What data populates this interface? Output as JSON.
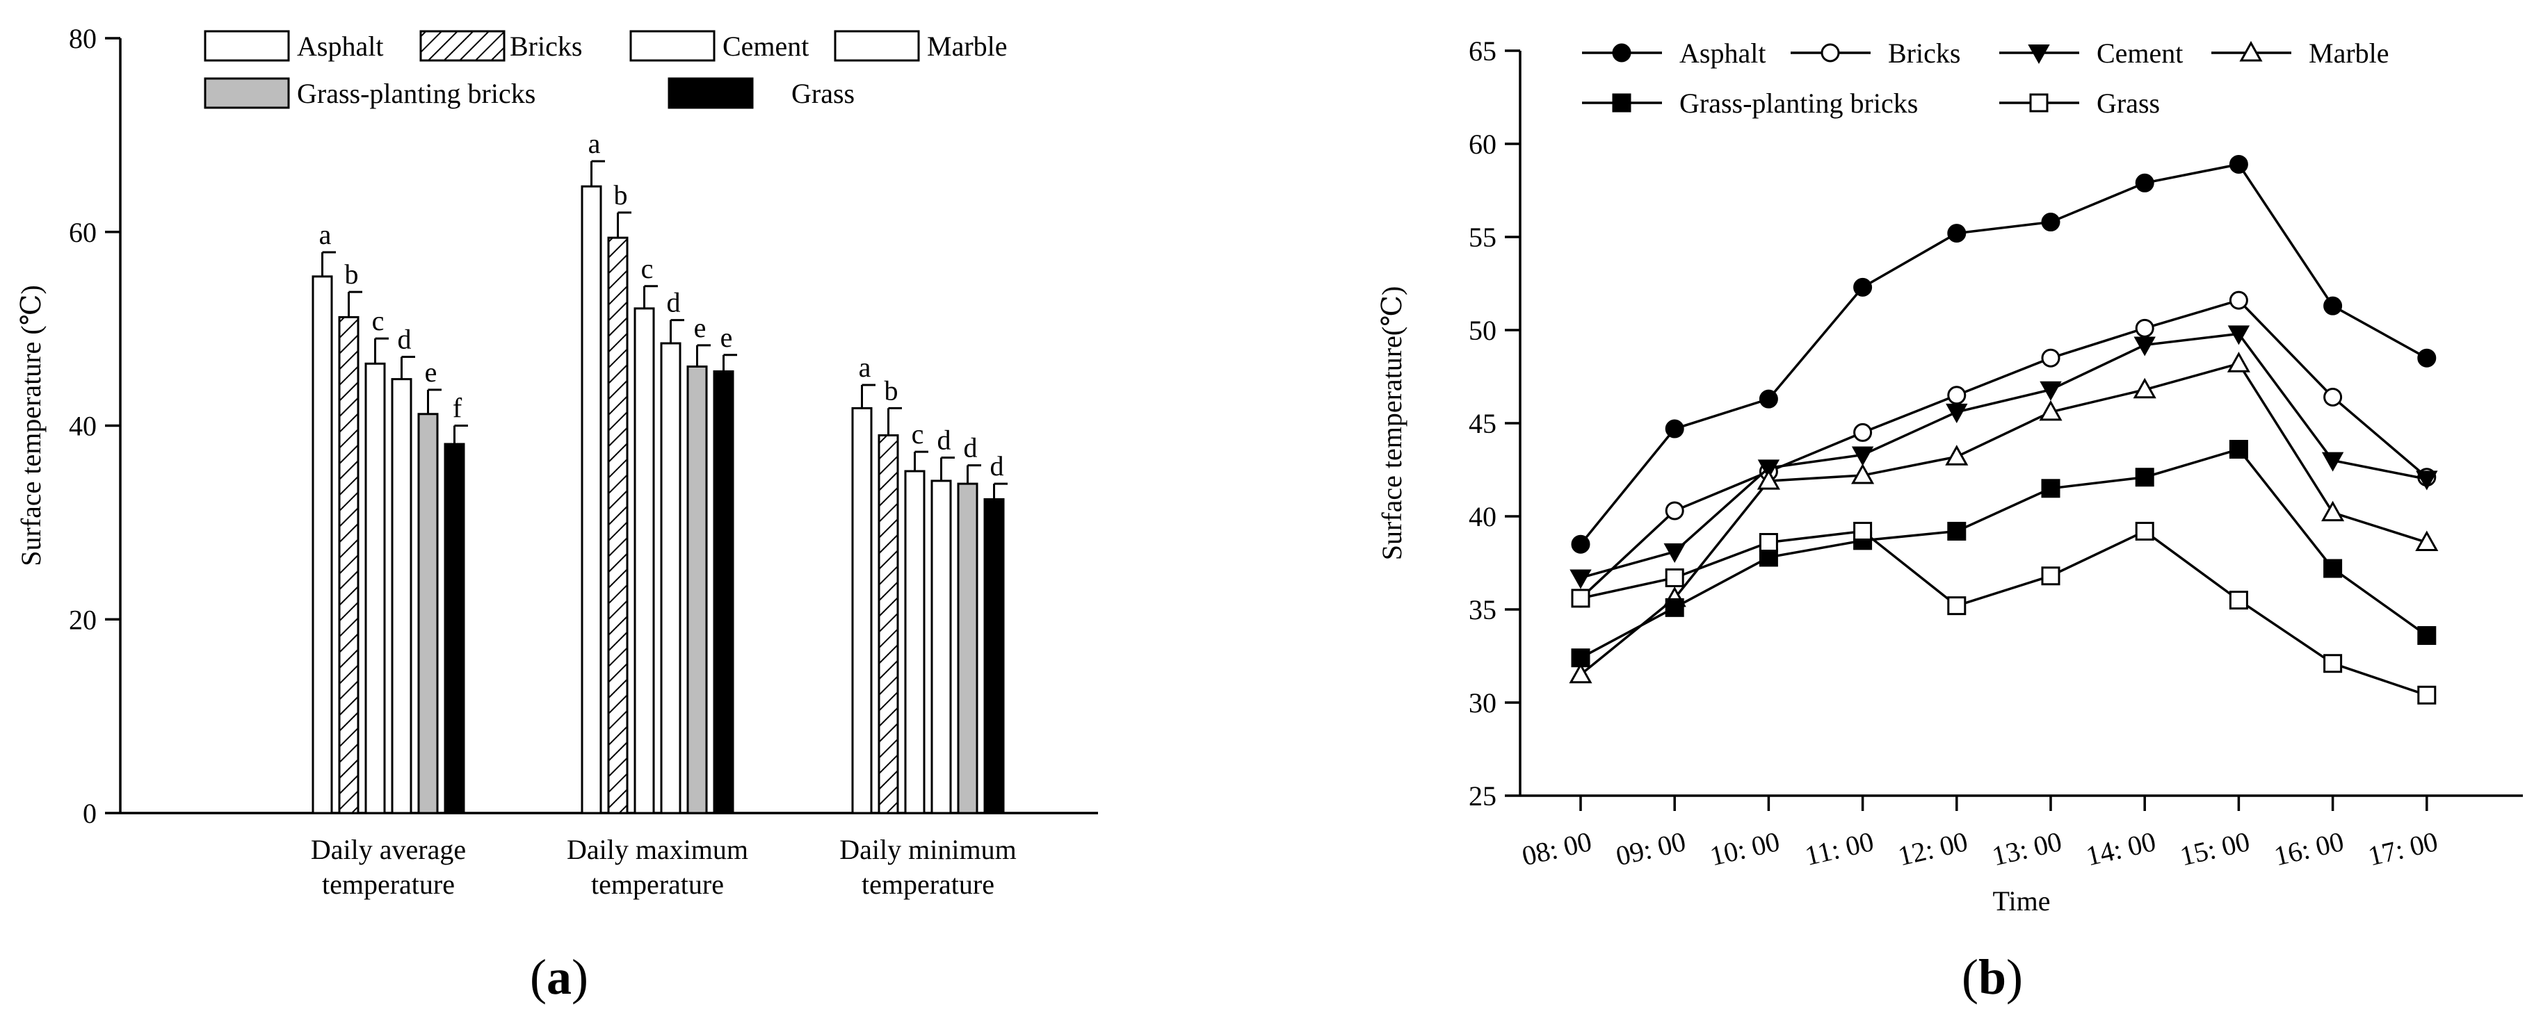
{
  "chart_data": [
    {
      "panel": "(a)",
      "type": "bar",
      "ylabel": "Surface temperature (℃)",
      "ylim": [
        0,
        80
      ],
      "yticks": [
        0,
        20,
        40,
        60,
        80
      ],
      "groups": [
        [
          "Daily average",
          "temperature"
        ],
        [
          "Daily maximum",
          "temperature"
        ],
        [
          "Daily minimum",
          "temperature"
        ]
      ],
      "series": [
        {
          "name": "Asphalt",
          "fill": "white",
          "values": [
            55.4,
            64.7,
            41.8
          ],
          "errors": [
            2.5,
            2.6,
            2.4
          ],
          "letters": [
            "a",
            "a",
            "a"
          ]
        },
        {
          "name": "Bricks",
          "fill": "hatch",
          "values": [
            51.2,
            59.4,
            39.0
          ],
          "errors": [
            2.6,
            2.6,
            2.8
          ],
          "letters": [
            "b",
            "b",
            "b"
          ]
        },
        {
          "name": "Cement",
          "fill": "white",
          "values": [
            46.4,
            52.1,
            35.3
          ],
          "errors": [
            2.6,
            2.3,
            2.0
          ],
          "letters": [
            "c",
            "c",
            "c"
          ]
        },
        {
          "name": "Marble",
          "fill": "white",
          "values": [
            44.8,
            48.5,
            34.3
          ],
          "errors": [
            2.3,
            2.4,
            2.4
          ],
          "letters": [
            "d",
            "d",
            "d"
          ]
        },
        {
          "name": "Grass-planting bricks",
          "fill": "#bdbdbd",
          "values": [
            41.2,
            46.1,
            34.0
          ],
          "errors": [
            2.5,
            2.2,
            1.9
          ],
          "letters": [
            "e",
            "e",
            "d"
          ]
        },
        {
          "name": "Grass",
          "fill": "black",
          "values": [
            38.1,
            45.6,
            32.4
          ],
          "errors": [
            1.9,
            1.7,
            1.6
          ],
          "letters": [
            "f",
            "e",
            "d"
          ]
        }
      ],
      "legend": "top",
      "caption_letter": "a"
    },
    {
      "panel": "(b)",
      "type": "line",
      "xlabel": "Time",
      "ylabel": "Surface temperature(℃)",
      "ylim": [
        25,
        65
      ],
      "yticks": [
        25,
        30,
        35,
        40,
        45,
        50,
        55,
        60,
        65
      ],
      "x": [
        "08: 00",
        "09: 00",
        "10: 00",
        "11: 00",
        "12: 00",
        "13: 00",
        "14: 00",
        "15: 00",
        "16: 00",
        "17: 00"
      ],
      "series": [
        {
          "name": "Asphalt",
          "marker": "filled-circle",
          "values": [
            38.5,
            44.7,
            46.3,
            52.3,
            55.2,
            55.8,
            57.9,
            58.9,
            51.3,
            48.5
          ]
        },
        {
          "name": "Bricks",
          "marker": "open-circle",
          "values": [
            35.6,
            40.3,
            42.4,
            44.5,
            46.5,
            48.5,
            50.1,
            51.6,
            46.4,
            42.1
          ]
        },
        {
          "name": "Cement",
          "marker": "filled-triangle-down",
          "values": [
            36.7,
            38.1,
            42.6,
            43.3,
            45.6,
            46.8,
            49.2,
            49.8,
            43.0,
            42.0
          ]
        },
        {
          "name": "Marble",
          "marker": "open-triangle-up",
          "values": [
            31.5,
            35.6,
            41.9,
            42.2,
            43.2,
            45.6,
            46.8,
            48.2,
            40.2,
            38.6
          ]
        },
        {
          "name": "Grass-planting bricks",
          "marker": "filled-square",
          "values": [
            32.4,
            35.1,
            37.8,
            38.7,
            39.2,
            41.5,
            42.1,
            43.6,
            37.2,
            33.6
          ]
        },
        {
          "name": "Grass",
          "marker": "open-square",
          "values": [
            35.6,
            36.7,
            38.6,
            39.2,
            35.2,
            36.8,
            39.2,
            35.5,
            32.1,
            30.4
          ]
        }
      ],
      "legend": "top",
      "caption_letter": "b"
    }
  ]
}
